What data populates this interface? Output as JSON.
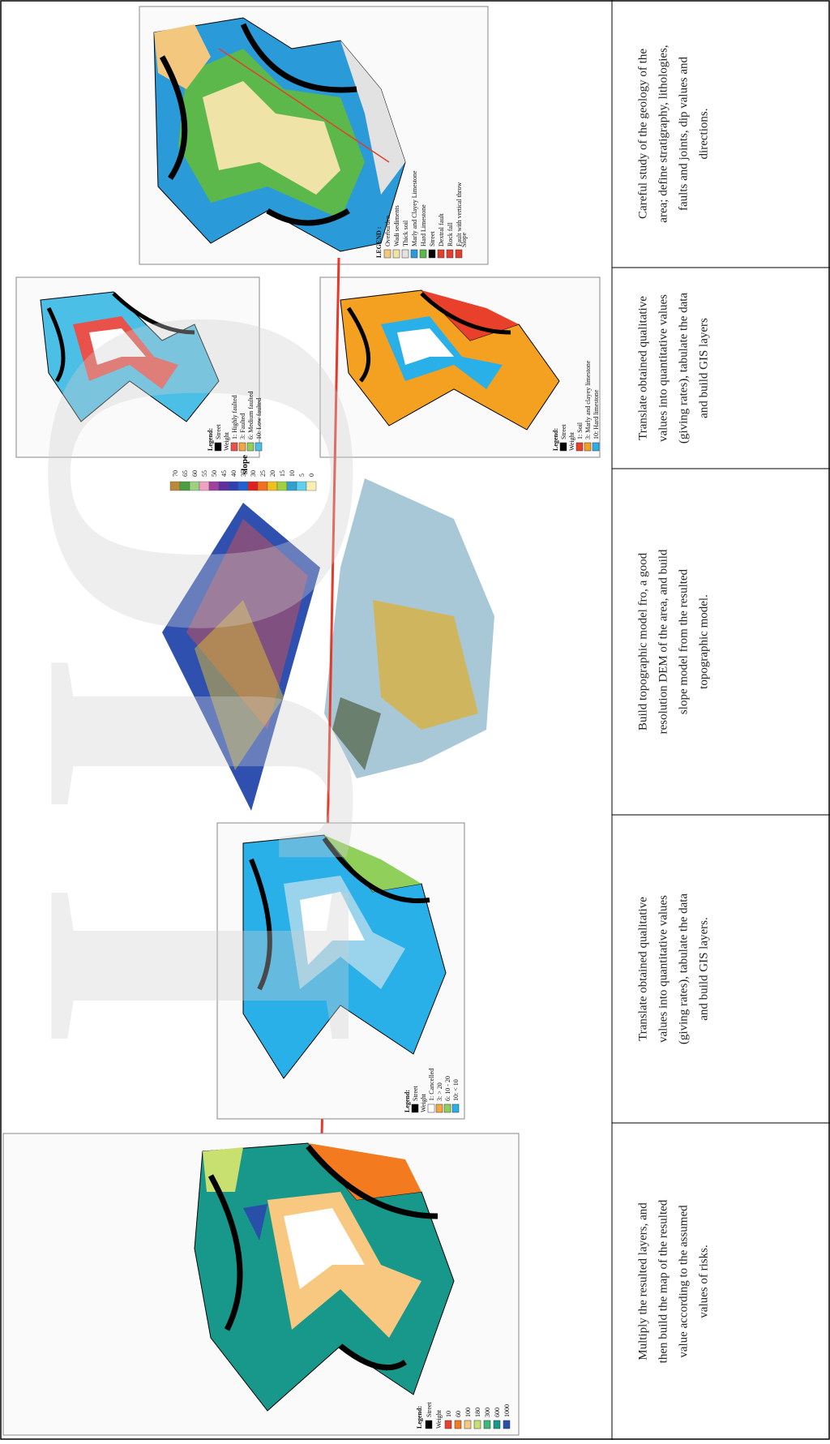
{
  "figure": {
    "geology_map": {
      "legend_title": "LEGEND :",
      "legend": [
        {
          "label": "Overburden",
          "color": "#f3c77e"
        },
        {
          "label": "Wadi sediments",
          "color": "#efe3a8"
        },
        {
          "label": "Thick soil",
          "color": "#e2e2e2"
        },
        {
          "label": "Marly and Clayey Limestone",
          "color": "#2a9bd8"
        },
        {
          "label": "Hard Limestone",
          "color": "#5cb84a"
        },
        {
          "label": "Street",
          "color": "#000000"
        },
        {
          "label": "Dextral fault",
          "color": "#e0402c"
        },
        {
          "label": "Rock fall",
          "color": "#e0402c"
        },
        {
          "label": "Fault with vertical throw",
          "color": "#e0402c"
        }
      ],
      "slope_label": "Slope"
    },
    "fault_map": {
      "legend_title": "Legend:",
      "legend": [
        {
          "label": "Street",
          "color": "#000000"
        },
        {
          "label": "Weight",
          "color": null
        },
        {
          "label": "1: Highly faulted",
          "color": "#e8524a"
        },
        {
          "label": "3: Faulted",
          "color": "#f4a640"
        },
        {
          "label": "6: Medium faulted",
          "color": "#8fcf5a"
        },
        {
          "label": "10: Low faulted",
          "color": "#4cbfe6"
        }
      ]
    },
    "lithology_map": {
      "legend_title": "Legend:",
      "legend": [
        {
          "label": "Street",
          "color": "#000000"
        },
        {
          "label": "Weight",
          "color": null
        },
        {
          "label": "1: Soil",
          "color": "#e8402a"
        },
        {
          "label": "3: Marly and clayey limestone",
          "color": "#f4a020"
        },
        {
          "label": "10: Hard limestone",
          "color": "#2ab0e8"
        }
      ]
    },
    "slope_model": {
      "title": "slope",
      "scale": [
        70,
        65,
        60,
        55,
        50,
        45,
        40,
        35,
        30,
        25,
        20,
        15,
        10,
        5,
        0
      ],
      "colors": [
        "#b88a3a",
        "#4aa040",
        "#9ad080",
        "#f0a0c0",
        "#a040a0",
        "#6030a0",
        "#3040b0",
        "#2060d0",
        "#e02020",
        "#f07020",
        "#f0c020",
        "#a0d040",
        "#30a0d0",
        "#60d0f0",
        "#f8f0b0"
      ]
    },
    "slope_map": {
      "legend_title": "Legend:",
      "legend": [
        {
          "label": "Street",
          "color": "#000000"
        },
        {
          "label": "Weight",
          "color": null
        },
        {
          "label": "1: Cancelled",
          "color": "#ffffff"
        },
        {
          "label": "3: > 20",
          "color": "#f4a640"
        },
        {
          "label": "6: 10 - 20",
          "color": "#8fcf5a"
        },
        {
          "label": "10: < 10",
          "color": "#2ab0e8"
        }
      ]
    },
    "risk_map": {
      "legend_title": "Legend:",
      "legend": [
        {
          "label": "Street",
          "color": "#000000"
        },
        {
          "label": "Weight",
          "color": null
        }
      ],
      "weights": [
        {
          "value": 10,
          "color": "#e8402a"
        },
        {
          "value": 60,
          "color": "#f47a20"
        },
        {
          "value": 100,
          "color": "#f8c880"
        },
        {
          "value": 180,
          "color": "#c8e070"
        },
        {
          "value": 300,
          "color": "#3cb878"
        },
        {
          "value": 600,
          "color": "#18988a"
        },
        {
          "value": 1000,
          "color": "#2850a8"
        }
      ]
    },
    "watermark": "IJO"
  },
  "table": {
    "cells": [
      {
        "lines": [
          "Careful study of the geology of the",
          "area; define stratigraphy, lithologies,",
          "faults and joints, dip values and",
          "directions."
        ]
      },
      {
        "lines": [
          "Translate obtained qualitative",
          "values into quantitative values",
          "(giving rates), tabulate the data",
          "and build GIS layers"
        ]
      },
      {
        "lines": [
          "Build topographic model fro, a good",
          "resolution DEM of the area, and build",
          "slope model from the resulted",
          "topographic model."
        ]
      },
      {
        "lines": [
          "Translate obtained qualitative",
          "values into quantitative values",
          "(giving rates), tabulate the data",
          "and build GIS layers."
        ]
      },
      {
        "lines": [
          "Multiply the resulted layers, and",
          "then build the map of the resulted",
          "value according to the assumed",
          "values of risks."
        ]
      }
    ]
  }
}
